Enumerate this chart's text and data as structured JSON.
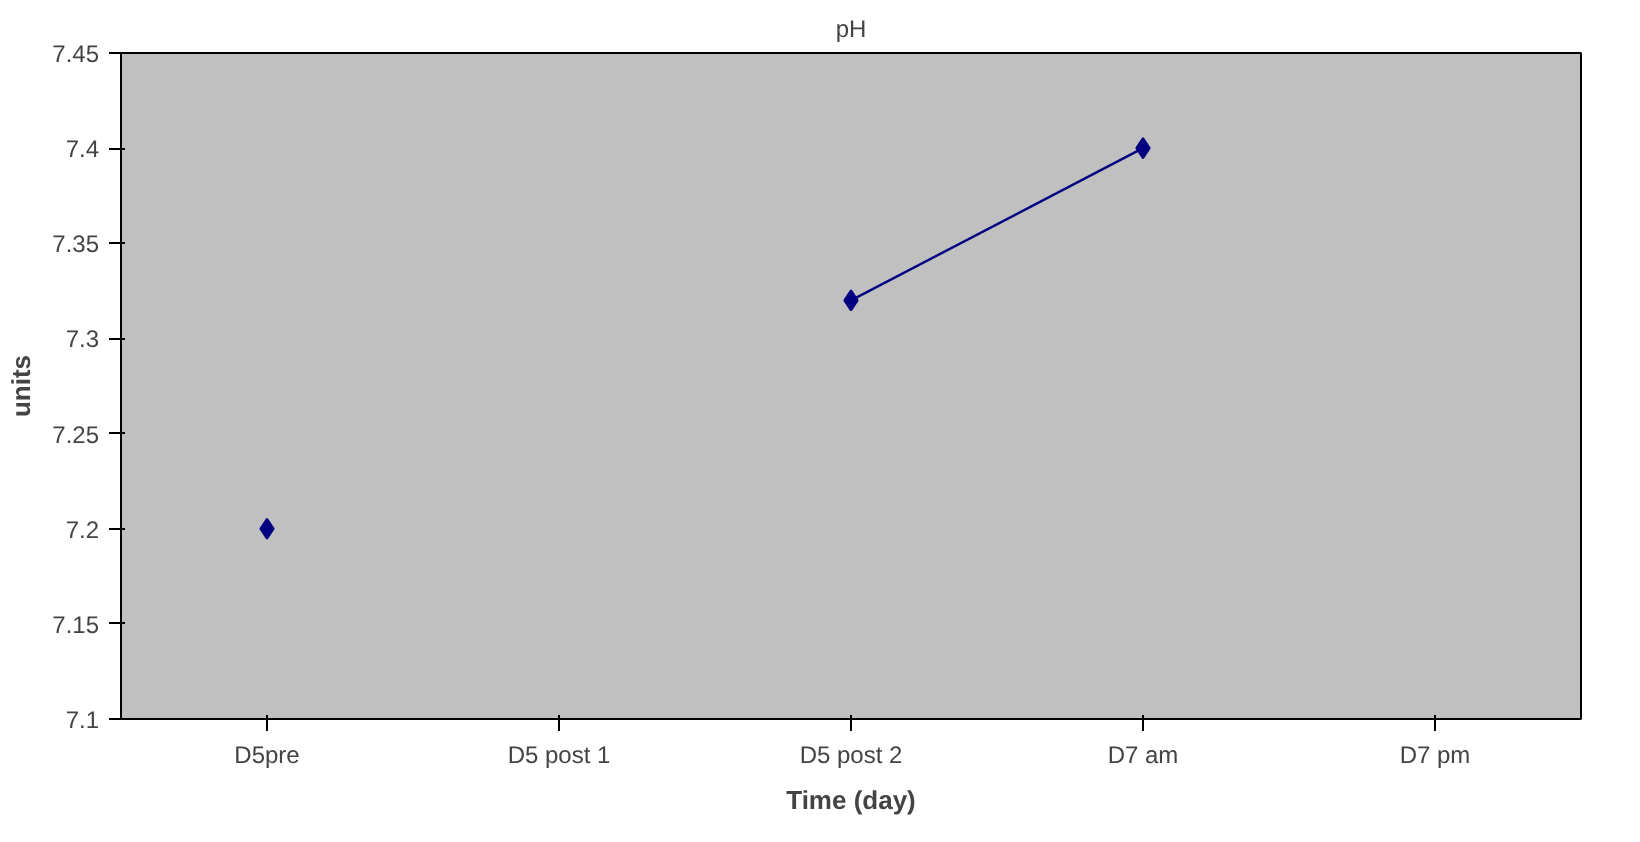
{
  "chart_data": {
    "type": "line",
    "title": "pH",
    "xlabel": "Time (day)",
    "ylabel": "units",
    "categories": [
      "D5pre",
      "D5 post 1",
      "D5 post 2",
      "D7 am",
      "D7 pm"
    ],
    "series": [
      {
        "color": "#000080",
        "values": [
          7.2,
          null,
          7.32,
          7.4,
          null
        ]
      }
    ],
    "ylim": [
      7.1,
      7.45
    ],
    "yticks": [
      7.1,
      7.15,
      7.2,
      7.25,
      7.3,
      7.35,
      7.4,
      7.45
    ],
    "marker": "diamond",
    "line_style": "solid",
    "grid": false
  }
}
